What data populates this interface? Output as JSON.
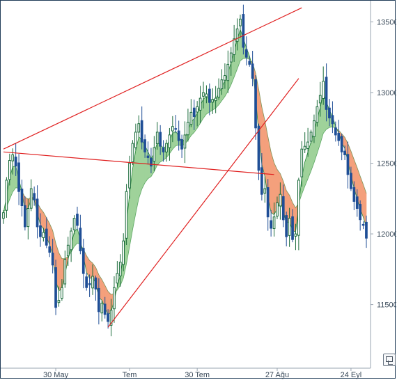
{
  "chart_data": {
    "type": "candlestick",
    "title": "",
    "xlabel": "",
    "ylabel": "",
    "ylim": [
      11050,
      13650
    ],
    "grid": false,
    "y_ticks": [
      11500,
      12000,
      12500,
      13000,
      13500
    ],
    "y_tick_labels": [
      "11500",
      "12000",
      "12500",
      "13000",
      "13500"
    ],
    "x_ticks": [
      {
        "label": "30 May",
        "index": 17
      },
      {
        "label": "Tem",
        "index": 41
      },
      {
        "label": "30 Tem",
        "index": 63
      },
      {
        "label": "27 Ağu",
        "index": 89
      },
      {
        "label": "24 Eyl",
        "index": 113
      }
    ],
    "colors": {
      "up_candle": "#1a6b3a",
      "down_candle": "#1f4e96",
      "band_up": "#9fd29a",
      "band_down": "#f4a07c",
      "band_edge_green": "#2e8b3e",
      "band_edge_orange": "#d9603a",
      "trendline": "#e02020"
    },
    "closes": [
      12150,
      12380,
      12520,
      12560,
      12480,
      12300,
      12200,
      12050,
      12180,
      12320,
      12240,
      12050,
      11980,
      12010,
      11920,
      11870,
      11780,
      11480,
      11530,
      11620,
      11820,
      11920,
      12020,
      12110,
      12060,
      11880,
      11720,
      11620,
      11640,
      11700,
      11610,
      11450,
      11510,
      11430,
      11380,
      11460,
      11620,
      11720,
      11800,
      11950,
      12300,
      12500,
      12640,
      12720,
      12780,
      12650,
      12580,
      12540,
      12480,
      12610,
      12720,
      12620,
      12580,
      12640,
      12700,
      12760,
      12740,
      12660,
      12600,
      12700,
      12790,
      12860,
      12830,
      12900,
      12960,
      13000,
      12990,
      12930,
      12950,
      12960,
      13030,
      13090,
      13120,
      13200,
      13280,
      13380,
      13450,
      13520,
      13320,
      13250,
      13200,
      13100,
      12750,
      12450,
      12280,
      12320,
      12120,
      12040,
      12120,
      12220,
      12280,
      12100,
      11980,
      12110,
      11960,
      12000,
      12380,
      12600,
      12620,
      12650,
      12720,
      12800,
      12900,
      12980,
      13080,
      12880,
      12820,
      12780,
      12700,
      12660,
      12580,
      12560,
      12420,
      12320,
      12230,
      12180,
      12100,
      12060,
      11970
    ]
  }
}
